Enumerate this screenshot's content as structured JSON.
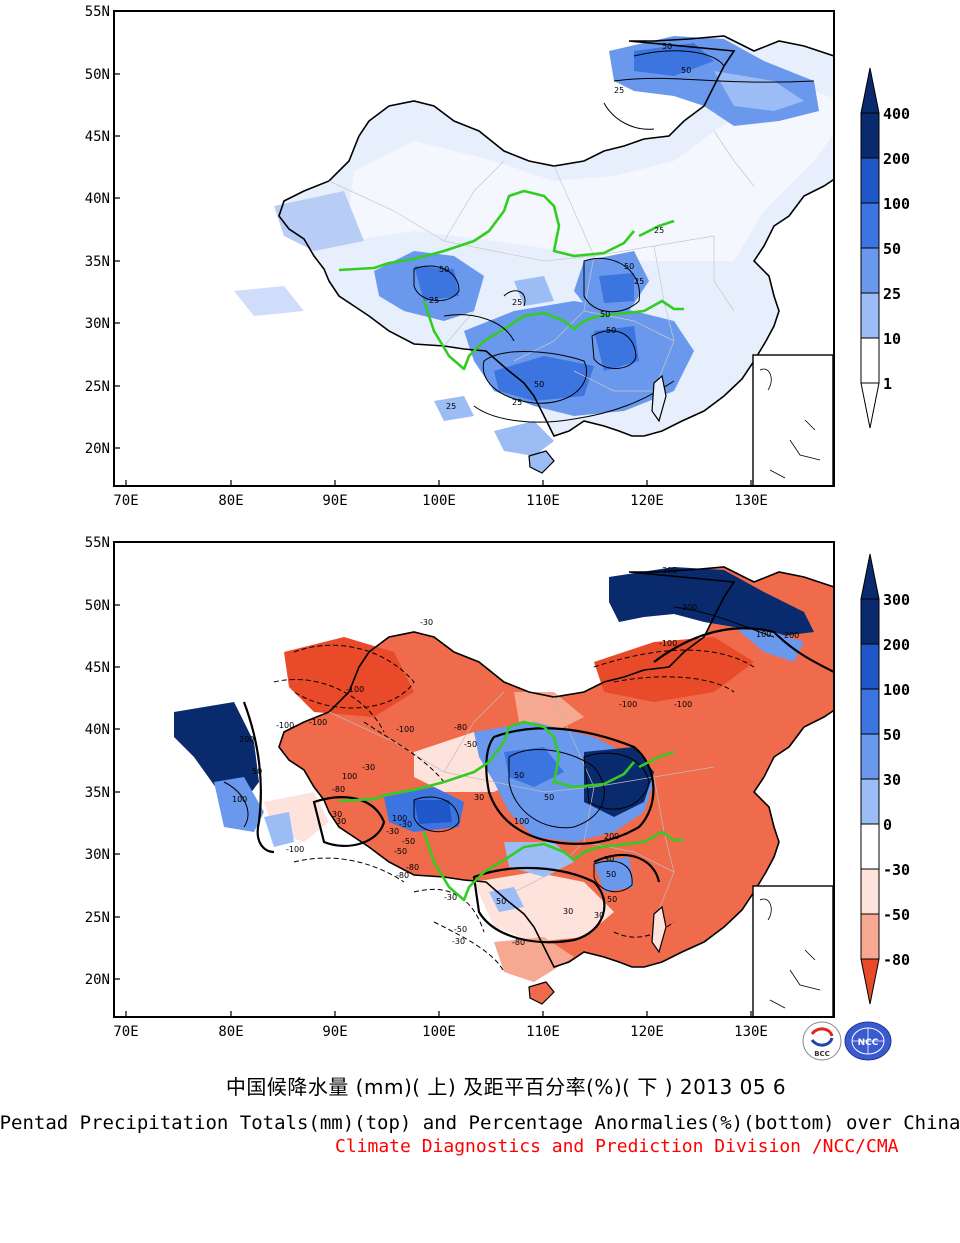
{
  "maps": [
    {
      "id": "top",
      "lat_labels": [
        "55N",
        "50N",
        "45N",
        "40N",
        "35N",
        "30N",
        "25N",
        "20N"
      ],
      "lon_labels": [
        "70E",
        "80E",
        "90E",
        "100E",
        "110E",
        "120E",
        "130E"
      ],
      "colorbar_labels": [
        "400",
        "200",
        "100",
        "50",
        "25",
        "10",
        "1"
      ],
      "colorbar_colors": [
        "#0a2a6e",
        "#1f57c9",
        "#3d75e0",
        "#6a98ec",
        "#9bbcf4",
        "#cfddfa",
        "#ffffff"
      ],
      "contour_labels": [
        "50",
        "50",
        "25",
        "25",
        "50",
        "50",
        "25",
        "50",
        "50",
        "25",
        "50",
        "25",
        "25",
        "25"
      ]
    },
    {
      "id": "bottom",
      "lat_labels": [
        "55N",
        "50N",
        "45N",
        "40N",
        "35N",
        "30N",
        "25N",
        "20N"
      ],
      "lon_labels": [
        "70E",
        "80E",
        "90E",
        "100E",
        "110E",
        "120E",
        "130E"
      ],
      "colorbar_labels": [
        "300",
        "200",
        "100",
        "50",
        "30",
        "0",
        "-30",
        "-50",
        "-80"
      ],
      "colorbar_colors": [
        "#0a2a6e",
        "#1f57c9",
        "#3d75e0",
        "#6a98ec",
        "#9bbcf4",
        "#ffffff",
        "#fde3dc",
        "#f7a890",
        "#f06a4c",
        "#e84a2a"
      ],
      "contour_labels": [
        "300",
        "300",
        "100",
        "200",
        "-100",
        "-100",
        "-100",
        "-100",
        "-100",
        "-80",
        "-50",
        "-30",
        "-100",
        "-100",
        "200",
        "100",
        "50",
        "-30",
        "100",
        "-80",
        "-30",
        "-50",
        "30",
        "100",
        "-30",
        "-50",
        "-80",
        "30",
        "50",
        "-100",
        "-80",
        "30",
        "100",
        "50",
        "200",
        "30",
        "50",
        "30",
        "-30",
        "-80",
        "-50",
        "50",
        "50",
        "30",
        "-30"
      ]
    }
  ],
  "title_cn": "中国候降水量 (mm)( 上) 及距平百分率(%)( 下 ) 2013 05 6",
  "title_en": "Pentad Precipitation Totals(mm)(top) and Percentage Anormalies(%)(bottom) over China",
  "credit": "Climate Diagnostics and Prediction Division /NCC/CMA",
  "logos": [
    "BCC",
    "NCC"
  ]
}
